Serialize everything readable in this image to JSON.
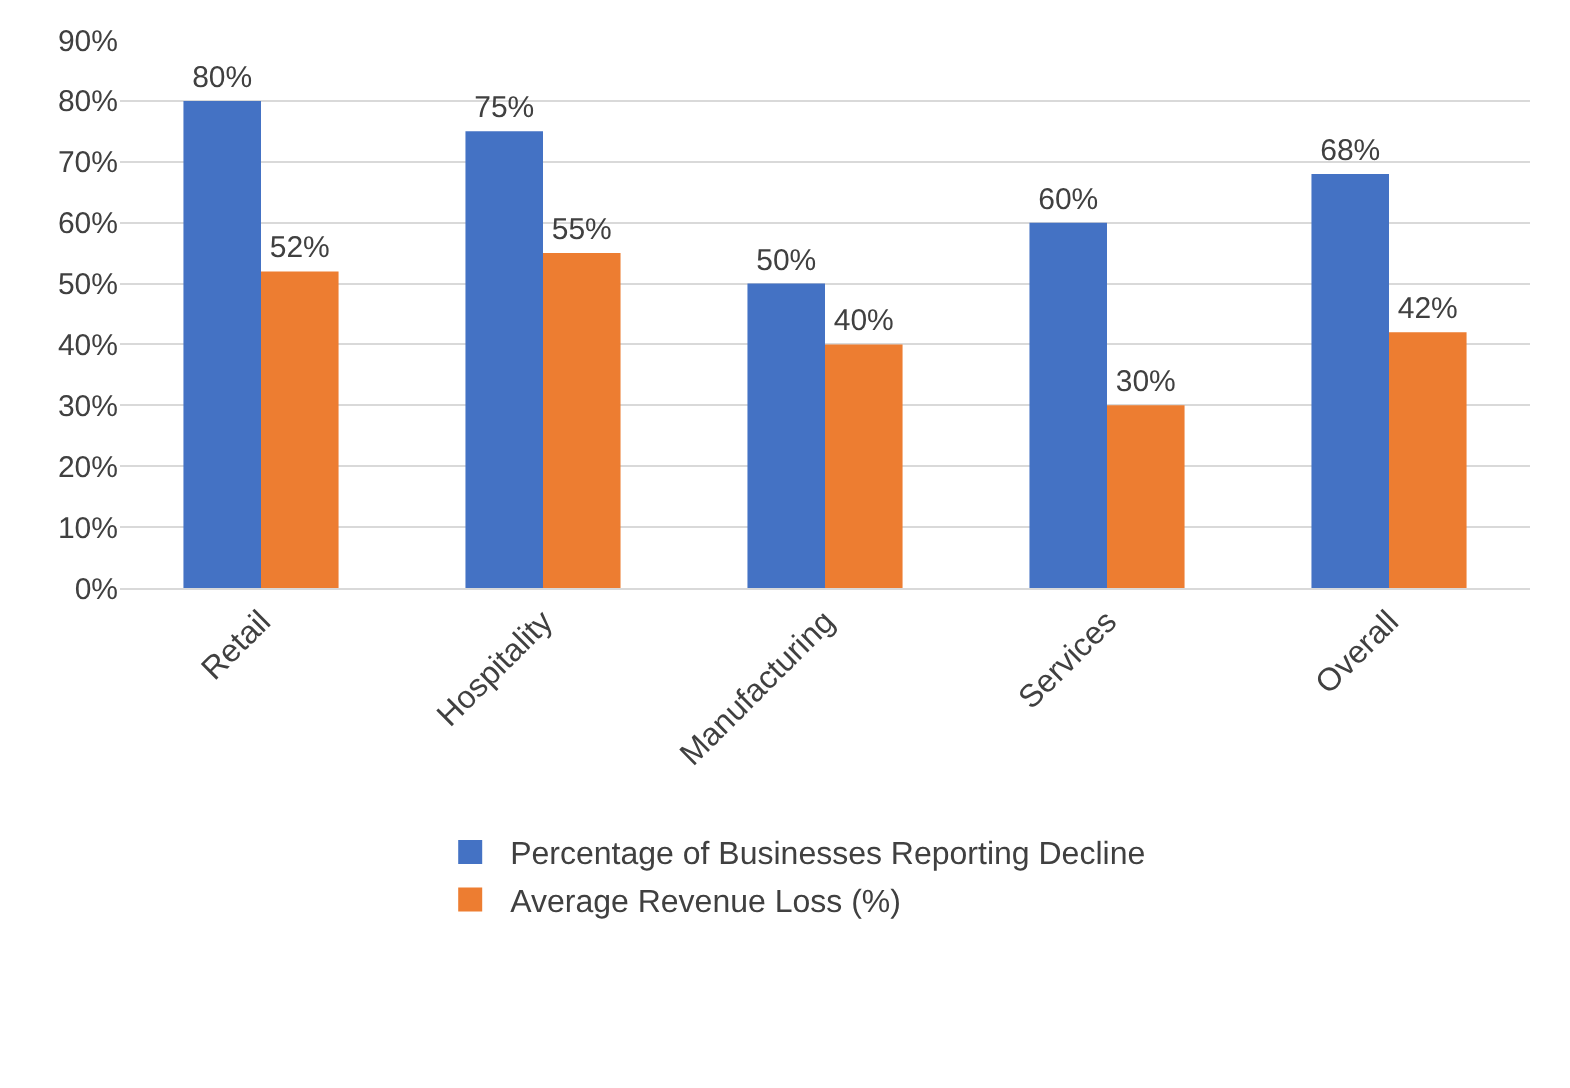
{
  "chart_data": {
    "type": "bar",
    "categories": [
      "Retail",
      "Hospitality",
      "Manufacturing",
      "Services",
      "Overall"
    ],
    "series": [
      {
        "name": "Percentage of Businesses Reporting Decline",
        "color": "#4472c4",
        "values": [
          80,
          75,
          50,
          60,
          68
        ],
        "value_labels": [
          "80%",
          "75%",
          "50%",
          "60%",
          "68%"
        ]
      },
      {
        "name": "Average Revenue Loss (%)",
        "color": "#ed7d31",
        "values": [
          52,
          55,
          40,
          30,
          42
        ],
        "value_labels": [
          "52%",
          "55%",
          "40%",
          "30%",
          "42%"
        ]
      }
    ],
    "ylim": [
      0,
      90
    ],
    "yticks": [
      {
        "value": 0,
        "label": "0%"
      },
      {
        "value": 10,
        "label": "10%"
      },
      {
        "value": 20,
        "label": "20%"
      },
      {
        "value": 30,
        "label": "30%"
      },
      {
        "value": 40,
        "label": "40%"
      },
      {
        "value": 50,
        "label": "50%"
      },
      {
        "value": 60,
        "label": "60%"
      },
      {
        "value": 70,
        "label": "70%"
      },
      {
        "value": 80,
        "label": "80%"
      },
      {
        "value": 90,
        "label": "90%"
      }
    ],
    "grid": "y",
    "legend": "bottom"
  }
}
